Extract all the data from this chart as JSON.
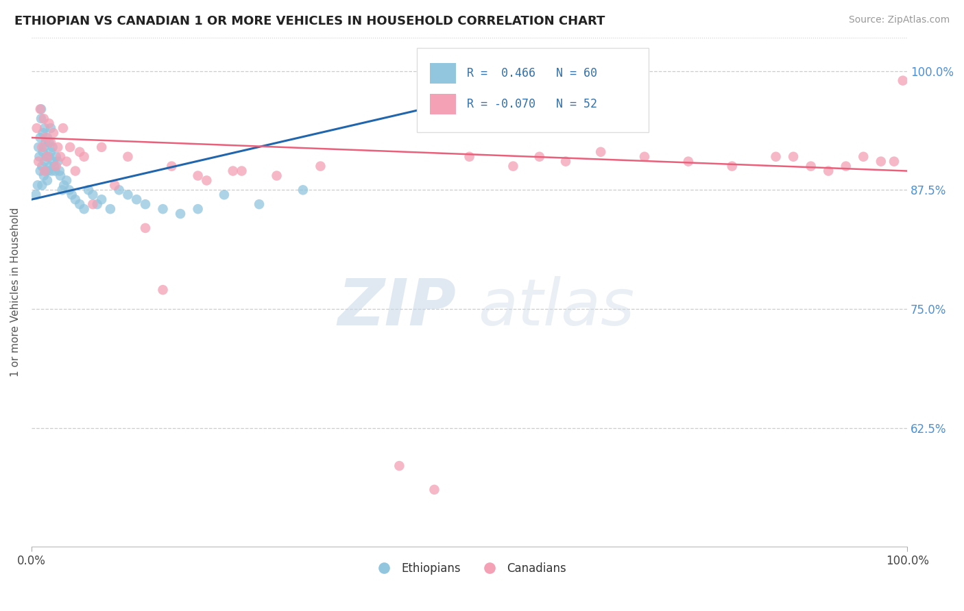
{
  "title": "ETHIOPIAN VS CANADIAN 1 OR MORE VEHICLES IN HOUSEHOLD CORRELATION CHART",
  "source": "Source: ZipAtlas.com",
  "ylabel": "1 or more Vehicles in Household",
  "xlim": [
    0.0,
    1.0
  ],
  "ylim": [
    0.5,
    1.035
  ],
  "ytick_vals": [
    0.625,
    0.75,
    0.875,
    1.0
  ],
  "ytick_labels": [
    "62.5%",
    "75.0%",
    "87.5%",
    "100.0%"
  ],
  "watermark_zip": "ZIP",
  "watermark_atlas": "atlas",
  "legend_r_blue": " 0.466",
  "legend_n_blue": "60",
  "legend_r_pink": "-0.070",
  "legend_n_pink": "52",
  "blue_color": "#92c5de",
  "pink_color": "#f4a0b5",
  "line_blue_color": "#2166ac",
  "line_pink_color": "#e8607a",
  "ethiopians_label": "Ethiopians",
  "canadians_label": "Canadians",
  "blue_scatter_x": [
    0.005,
    0.007,
    0.008,
    0.009,
    0.01,
    0.01,
    0.011,
    0.011,
    0.012,
    0.012,
    0.013,
    0.013,
    0.014,
    0.014,
    0.015,
    0.015,
    0.016,
    0.016,
    0.017,
    0.018,
    0.018,
    0.019,
    0.02,
    0.02,
    0.021,
    0.022,
    0.022,
    0.023,
    0.024,
    0.025,
    0.026,
    0.027,
    0.028,
    0.03,
    0.032,
    0.033,
    0.035,
    0.037,
    0.04,
    0.043,
    0.046,
    0.05,
    0.055,
    0.06,
    0.065,
    0.07,
    0.075,
    0.08,
    0.09,
    0.1,
    0.11,
    0.12,
    0.13,
    0.15,
    0.17,
    0.19,
    0.22,
    0.26,
    0.31,
    0.47
  ],
  "blue_scatter_y": [
    0.87,
    0.88,
    0.92,
    0.91,
    0.895,
    0.93,
    0.95,
    0.96,
    0.88,
    0.9,
    0.915,
    0.935,
    0.89,
    0.92,
    0.905,
    0.94,
    0.895,
    0.925,
    0.91,
    0.885,
    0.93,
    0.895,
    0.91,
    0.925,
    0.9,
    0.915,
    0.94,
    0.895,
    0.92,
    0.905,
    0.9,
    0.895,
    0.91,
    0.905,
    0.895,
    0.89,
    0.875,
    0.88,
    0.885,
    0.875,
    0.87,
    0.865,
    0.86,
    0.855,
    0.875,
    0.87,
    0.86,
    0.865,
    0.855,
    0.875,
    0.87,
    0.865,
    0.86,
    0.855,
    0.85,
    0.855,
    0.87,
    0.86,
    0.875,
    0.96
  ],
  "pink_scatter_x": [
    0.006,
    0.008,
    0.01,
    0.012,
    0.014,
    0.015,
    0.016,
    0.018,
    0.02,
    0.022,
    0.025,
    0.028,
    0.03,
    0.033,
    0.036,
    0.04,
    0.044,
    0.05,
    0.055,
    0.06,
    0.07,
    0.08,
    0.095,
    0.11,
    0.13,
    0.16,
    0.19,
    0.23,
    0.28,
    0.33,
    0.2,
    0.24,
    0.15,
    0.5,
    0.55,
    0.58,
    0.61,
    0.65,
    0.7,
    0.75,
    0.8,
    0.85,
    0.87,
    0.89,
    0.91,
    0.93,
    0.95,
    0.97,
    0.985,
    0.995,
    0.42,
    0.46
  ],
  "pink_scatter_y": [
    0.94,
    0.905,
    0.96,
    0.92,
    0.95,
    0.895,
    0.93,
    0.91,
    0.945,
    0.925,
    0.935,
    0.9,
    0.92,
    0.91,
    0.94,
    0.905,
    0.92,
    0.895,
    0.915,
    0.91,
    0.86,
    0.92,
    0.88,
    0.91,
    0.835,
    0.9,
    0.89,
    0.895,
    0.89,
    0.9,
    0.885,
    0.895,
    0.77,
    0.91,
    0.9,
    0.91,
    0.905,
    0.915,
    0.91,
    0.905,
    0.9,
    0.91,
    0.91,
    0.9,
    0.895,
    0.9,
    0.91,
    0.905,
    0.905,
    0.99,
    0.585,
    0.56
  ]
}
